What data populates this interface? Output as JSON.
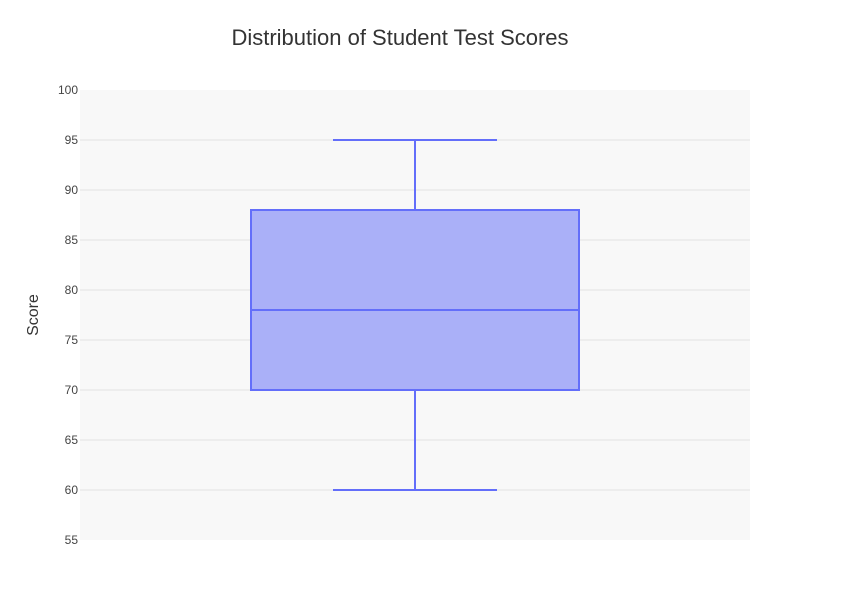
{
  "chart_data": {
    "type": "box",
    "title": "Distribution of Student Test Scores",
    "xlabel": "",
    "ylabel": "Score",
    "ylim": [
      55,
      100
    ],
    "ytick_step": 5,
    "grid": true,
    "legend": "none",
    "box": {
      "min": 60,
      "q1": 70,
      "median": 78,
      "q3": 88,
      "max": 95
    },
    "colors": {
      "box_fill": "#aab0f8",
      "box_line": "#636efa",
      "plot_bg": "#f8f8f8",
      "grid": "#e2e2e2",
      "text": "#333333",
      "tick_text": "#444444"
    }
  }
}
